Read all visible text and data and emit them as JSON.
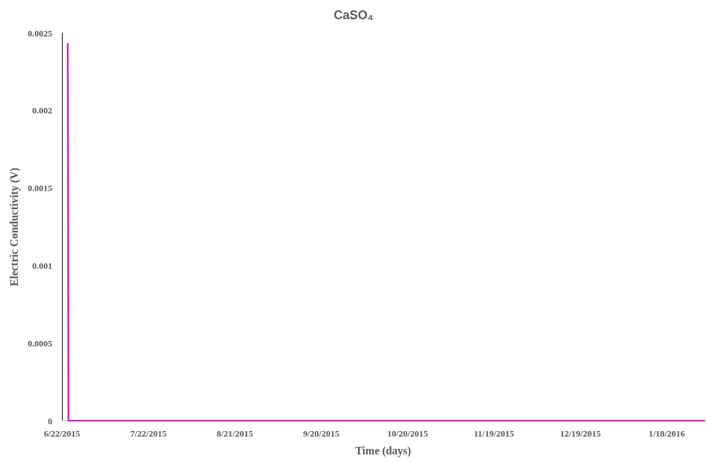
{
  "chart_data": {
    "type": "line",
    "title": "CaSO₄",
    "xlabel": "Time (days)",
    "ylabel": "Electric Conductivity (V)",
    "x": [
      "2015-06-24",
      "2015-06-24T06:00",
      "2016-01-31"
    ],
    "series": [
      {
        "color": "#cc22aa",
        "values": [
          0.00243,
          0,
          0
        ]
      }
    ],
    "xlim": [
      "2015-06-22",
      "2016-01-31"
    ],
    "xticks": [
      {
        "value": "2015-06-22",
        "label": "6/22/2015"
      },
      {
        "value": "2015-07-22",
        "label": "7/22/2015"
      },
      {
        "value": "2015-08-21",
        "label": "8/21/2015"
      },
      {
        "value": "2015-09-20",
        "label": "9/20/2015"
      },
      {
        "value": "2015-10-20",
        "label": "10/20/2015"
      },
      {
        "value": "2015-11-19",
        "label": "11/19/2015"
      },
      {
        "value": "2015-12-19",
        "label": "12/19/2015"
      },
      {
        "value": "2016-01-18",
        "label": "1/18/2016"
      }
    ],
    "ylim": [
      0,
      0.0025
    ],
    "yticks": [
      0,
      0.0005,
      0.001,
      0.0015,
      0.002,
      0.0025
    ],
    "grid": false,
    "marker": "none",
    "line_style": "solid"
  }
}
